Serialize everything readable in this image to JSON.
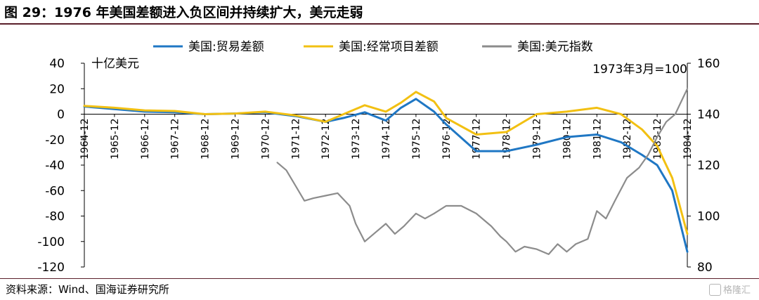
{
  "figure": {
    "title": "图 29：1976 年美国差额进入负区间并持续扩大，美元走弱",
    "source": "资料来源：Wind、国海证券研究所",
    "watermark": "格隆汇"
  },
  "chart_data": {
    "type": "line",
    "left_unit": "十亿美元",
    "annotation": "1973年3月=100",
    "x_categories": [
      "1964-12",
      "1965-12",
      "1966-12",
      "1967-12",
      "1968-12",
      "1969-12",
      "1970-12",
      "1971-12",
      "1972-12",
      "1973-12",
      "1974-12",
      "1975-12",
      "1976-12",
      "1977-12",
      "1978-12",
      "1979-12",
      "1980-12",
      "1981-12",
      "1982-12",
      "1983-12",
      "1984-12"
    ],
    "y_left": {
      "min": -120,
      "max": 40,
      "ticks": [
        40,
        20,
        0,
        -20,
        -40,
        -60,
        -80,
        -100,
        -120
      ]
    },
    "y_right": {
      "min": 80,
      "max": 160,
      "ticks": [
        160,
        140,
        120,
        100,
        80
      ]
    },
    "grid": false,
    "legend_position": "top",
    "series": [
      {
        "name": "美国:贸易差额",
        "color": "#1f77c4",
        "axis": "left",
        "points": [
          [
            0,
            6
          ],
          [
            1,
            4
          ],
          [
            2,
            2
          ],
          [
            3,
            1.5
          ],
          [
            4,
            0
          ],
          [
            5,
            0.5
          ],
          [
            6,
            1.5
          ],
          [
            7,
            -1.5
          ],
          [
            8,
            -6
          ],
          [
            8.6,
            -3
          ],
          [
            9.3,
            1.5
          ],
          [
            10,
            -5
          ],
          [
            10.5,
            5
          ],
          [
            11,
            12
          ],
          [
            11.6,
            2
          ],
          [
            12,
            -8
          ],
          [
            13,
            -29
          ],
          [
            14,
            -29
          ],
          [
            15,
            -24
          ],
          [
            16,
            -18
          ],
          [
            17,
            -16
          ],
          [
            17.8,
            -22
          ],
          [
            18.5,
            -32
          ],
          [
            19,
            -40
          ],
          [
            19.5,
            -60
          ],
          [
            20,
            -108
          ]
        ]
      },
      {
        "name": "美国:经常项目差额",
        "color": "#f2c012",
        "axis": "left",
        "points": [
          [
            0,
            6.5
          ],
          [
            1,
            5
          ],
          [
            2,
            3
          ],
          [
            3,
            2.5
          ],
          [
            4,
            0
          ],
          [
            5,
            0.5
          ],
          [
            6,
            2
          ],
          [
            7,
            -1
          ],
          [
            8,
            -6
          ],
          [
            8.6,
            0
          ],
          [
            9.3,
            7
          ],
          [
            10,
            2
          ],
          [
            10.5,
            9
          ],
          [
            11,
            17.5
          ],
          [
            11.6,
            10
          ],
          [
            12,
            -3
          ],
          [
            13,
            -16
          ],
          [
            14,
            -14
          ],
          [
            15,
            0
          ],
          [
            16,
            2
          ],
          [
            17,
            5
          ],
          [
            17.8,
            0
          ],
          [
            18.5,
            -12
          ],
          [
            19,
            -25
          ],
          [
            19.5,
            -50
          ],
          [
            20,
            -94
          ]
        ]
      },
      {
        "name": "美国:美元指数",
        "color": "#8c8c8c",
        "axis": "right",
        "points": [
          [
            6.4,
            121
          ],
          [
            6.7,
            118
          ],
          [
            7,
            112
          ],
          [
            7.3,
            106
          ],
          [
            7.6,
            107
          ],
          [
            8,
            108
          ],
          [
            8.4,
            109
          ],
          [
            8.8,
            104
          ],
          [
            9,
            97
          ],
          [
            9.3,
            90
          ],
          [
            9.6,
            93
          ],
          [
            10,
            97
          ],
          [
            10.3,
            93
          ],
          [
            10.6,
            96
          ],
          [
            11,
            101
          ],
          [
            11.3,
            99
          ],
          [
            11.6,
            101
          ],
          [
            12,
            104
          ],
          [
            12.5,
            104
          ],
          [
            13,
            101
          ],
          [
            13.5,
            96
          ],
          [
            13.8,
            92
          ],
          [
            14,
            90
          ],
          [
            14.3,
            86
          ],
          [
            14.6,
            88
          ],
          [
            15,
            87
          ],
          [
            15.4,
            85
          ],
          [
            15.7,
            89
          ],
          [
            16,
            86
          ],
          [
            16.3,
            89
          ],
          [
            16.7,
            91
          ],
          [
            17,
            102
          ],
          [
            17.3,
            99
          ],
          [
            17.6,
            106
          ],
          [
            18,
            115
          ],
          [
            18.4,
            119
          ],
          [
            18.7,
            124
          ],
          [
            19,
            131
          ],
          [
            19.3,
            137
          ],
          [
            19.6,
            140
          ],
          [
            19.8,
            145
          ],
          [
            20,
            150
          ]
        ]
      }
    ]
  }
}
